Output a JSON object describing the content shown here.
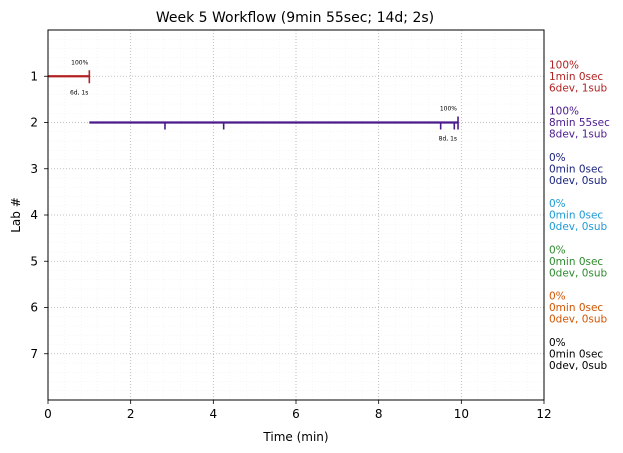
{
  "chart_data": {
    "type": "line",
    "title": "Week 5 Workflow (9min 55sec; 14d; 2s)",
    "xlabel": "Time (min)",
    "ylabel": "Lab #",
    "xlim": [
      0,
      12
    ],
    "ylim": [
      8,
      0
    ],
    "xticks": [
      0,
      2,
      4,
      6,
      8,
      10,
      12
    ],
    "yticks": [
      1,
      2,
      3,
      4,
      5,
      6,
      7
    ],
    "grid": true,
    "labs": [
      {
        "lab": 1,
        "color": "#b22222",
        "start": 0,
        "end": 1.0,
        "dev_marks": [],
        "sub_marks": [
          1.0
        ],
        "pct_label": "100%",
        "count_label": "6d, 1s",
        "summary": [
          "100%",
          "1min 0sec",
          "6dev, 1sub"
        ]
      },
      {
        "lab": 2,
        "color": "#4b1a8c",
        "start": 1.0,
        "end": 9.92,
        "dev_marks": [
          2.83,
          4.25,
          9.5,
          9.83
        ],
        "sub_marks": [
          9.92
        ],
        "pct_label": "100%",
        "count_label": "8d, 1s",
        "summary": [
          "100%",
          "8min 55sec",
          "8dev, 1sub"
        ]
      },
      {
        "lab": 3,
        "color": "#1a237e",
        "summary": [
          "0%",
          "0min 0sec",
          "0dev, 0sub"
        ]
      },
      {
        "lab": 4,
        "color": "#1e9ad6",
        "summary": [
          "0%",
          "0min 0sec",
          "0dev, 0sub"
        ]
      },
      {
        "lab": 5,
        "color": "#2e8b2e",
        "summary": [
          "0%",
          "0min 0sec",
          "0dev, 0sub"
        ]
      },
      {
        "lab": 6,
        "color": "#d35400",
        "summary": [
          "0%",
          "0min 0sec",
          "0dev, 0sub"
        ]
      },
      {
        "lab": 7,
        "color": "#000000",
        "summary": [
          "0%",
          "0min 0sec",
          "0dev, 0sub"
        ]
      }
    ]
  }
}
